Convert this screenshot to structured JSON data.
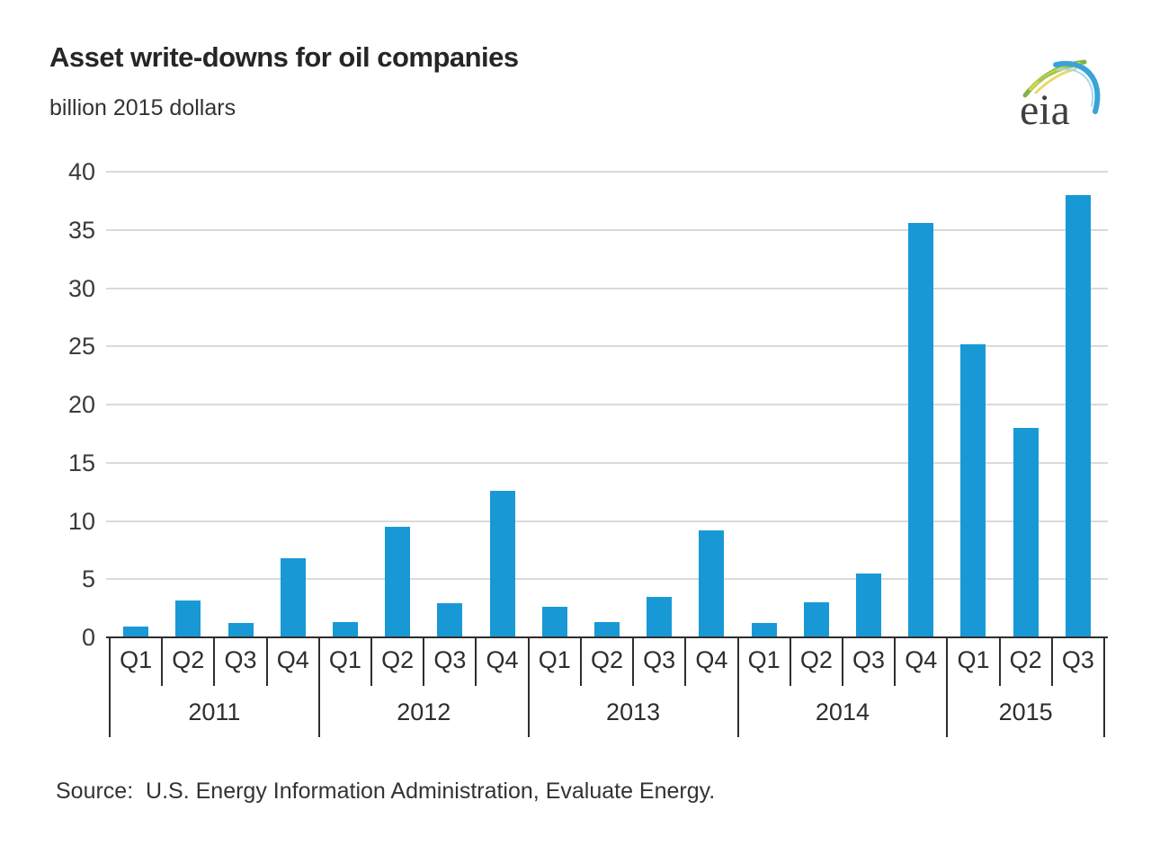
{
  "header": {
    "title": "Asset write-downs for oil companies",
    "subtitle": "billion 2015 dollars",
    "logo_text": "eia"
  },
  "chart_data": {
    "type": "bar",
    "title": "Asset write-downs for oil companies",
    "ylabel": "billion 2015 dollars",
    "xlabel": "",
    "ylim": [
      0,
      40
    ],
    "ytick_step": 5,
    "yticks": [
      0,
      5,
      10,
      15,
      20,
      25,
      30,
      35,
      40
    ],
    "grid": "horizontal-gridlines-on",
    "legend": "none",
    "bar_color": "#1899d6",
    "gridline_color": "#dadada",
    "axis_color": "#2e2e2e",
    "groups": [
      {
        "year": "2011",
        "quarters": [
          "Q1",
          "Q2",
          "Q3",
          "Q4"
        ],
        "values": [
          0.9,
          3.2,
          1.2,
          6.8
        ]
      },
      {
        "year": "2012",
        "quarters": [
          "Q1",
          "Q2",
          "Q3",
          "Q4"
        ],
        "values": [
          1.3,
          9.5,
          2.9,
          12.6
        ]
      },
      {
        "year": "2013",
        "quarters": [
          "Q1",
          "Q2",
          "Q3",
          "Q4"
        ],
        "values": [
          2.6,
          1.3,
          3.5,
          9.2
        ]
      },
      {
        "year": "2014",
        "quarters": [
          "Q1",
          "Q2",
          "Q3",
          "Q4"
        ],
        "values": [
          1.2,
          3.0,
          5.5,
          35.6
        ]
      },
      {
        "year": "2015",
        "quarters": [
          "Q1",
          "Q2",
          "Q3"
        ],
        "values": [
          25.2,
          18.0,
          38.0
        ]
      }
    ]
  },
  "footer": {
    "source": "Source:  U.S. Energy Information Administration, Evaluate Energy."
  }
}
